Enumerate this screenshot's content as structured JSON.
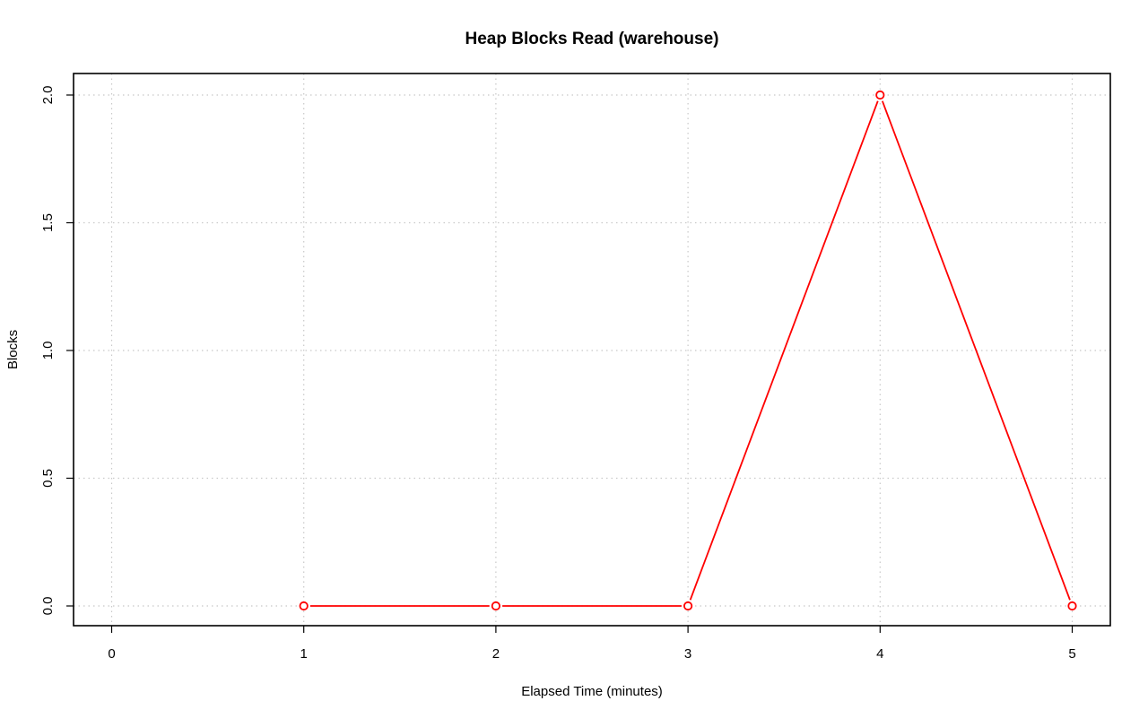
{
  "chart_data": {
    "type": "line",
    "title": "Heap Blocks Read (warehouse)",
    "xlabel": "Elapsed Time (minutes)",
    "ylabel": "Blocks",
    "xlim": [
      0,
      5
    ],
    "ylim": [
      0,
      2
    ],
    "x_ticks": [
      "0",
      "1",
      "2",
      "3",
      "4",
      "5"
    ],
    "y_ticks": [
      "0.0",
      "0.5",
      "1.0",
      "1.5",
      "2.0"
    ],
    "grid": true,
    "series": [
      {
        "color": "#ff0000",
        "marker": "open-circle",
        "points": [
          {
            "x": 1,
            "y": 0
          },
          {
            "x": 2,
            "y": 0
          },
          {
            "x": 3,
            "y": 0
          },
          {
            "x": 4,
            "y": 2
          },
          {
            "x": 5,
            "y": 0
          }
        ]
      }
    ]
  }
}
